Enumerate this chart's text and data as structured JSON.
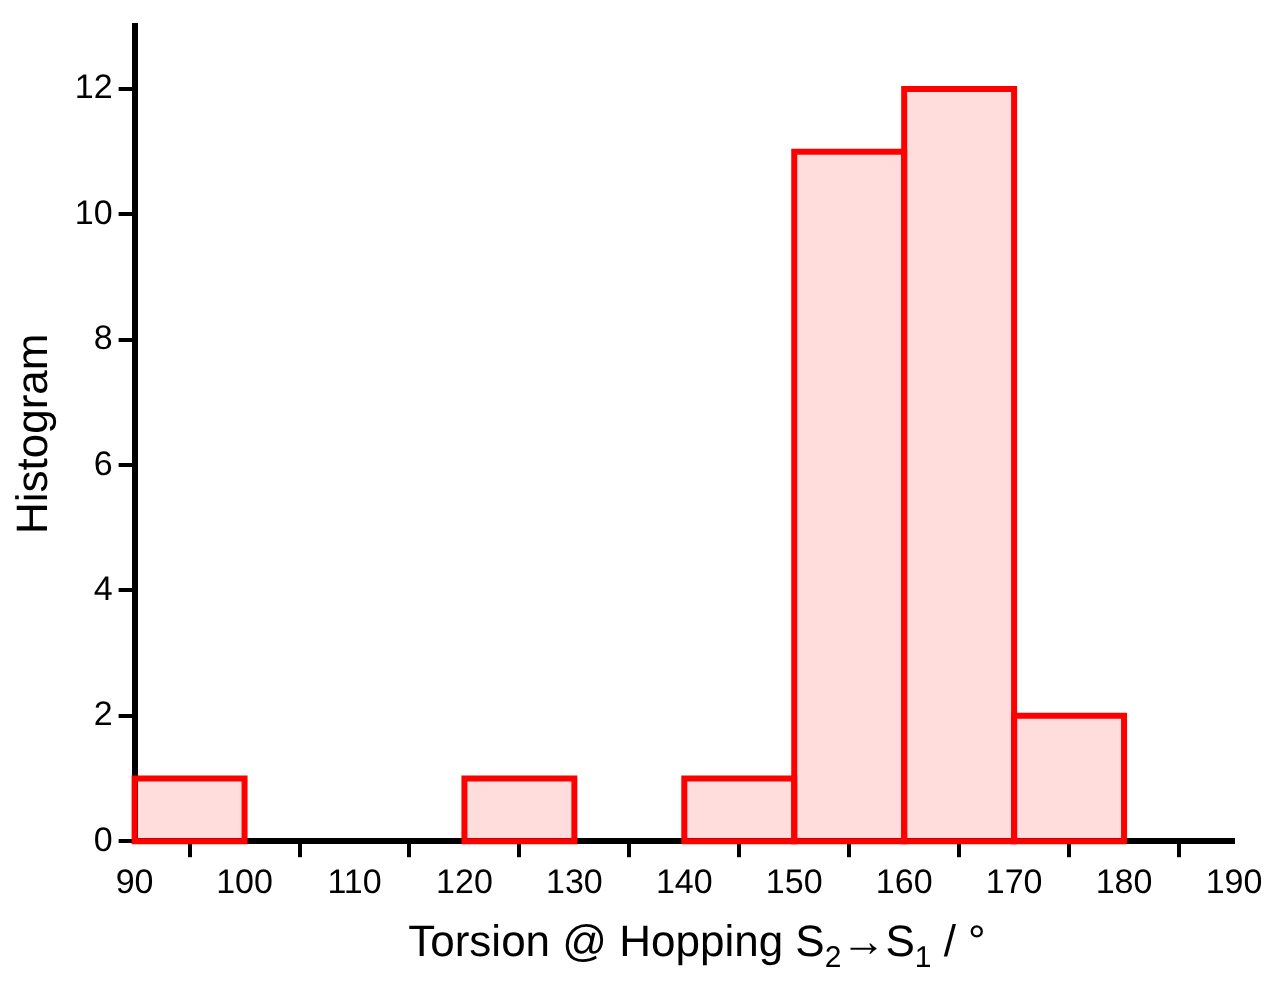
{
  "chart_data": {
    "type": "histogram",
    "xlabel": "Torsion @ Hopping S$_{2}$→S$_{1}$ / °",
    "ylabel": "Histogram",
    "bins": [
      90,
      100,
      110,
      120,
      130,
      140,
      150,
      160,
      170,
      180
    ],
    "values": [
      1,
      0,
      0,
      1,
      0,
      1,
      11,
      12,
      2
    ],
    "color": "#ff0000",
    "xlim": [
      90,
      190
    ],
    "xticks": [
      90,
      100,
      110,
      120,
      130,
      140,
      150,
      160,
      170,
      180,
      190
    ],
    "ylim": [
      0,
      13
    ],
    "yticks": [
      0,
      2,
      4,
      6,
      8,
      10,
      12
    ],
    "grid": false
  }
}
